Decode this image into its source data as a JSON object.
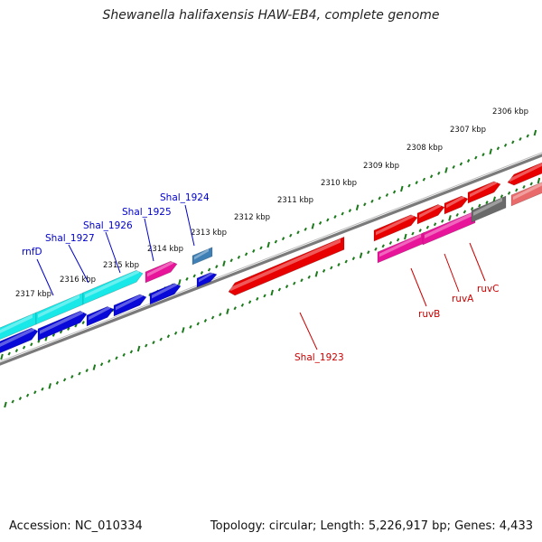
{
  "title": "Shewanella halifaxensis HAW-EB4, complete genome",
  "footer": {
    "accession": "Accession: NC_010334",
    "summary": "Topology: circular; Length: 5,226,917 bp; Genes: 4,433"
  },
  "kbp_ticks": [
    {
      "label": "2306 kbp"
    },
    {
      "label": "2307 kbp"
    },
    {
      "label": "2308 kbp"
    },
    {
      "label": "2309 kbp"
    },
    {
      "label": "2310 kbp"
    },
    {
      "label": "2311 kbp"
    },
    {
      "label": "2312 kbp"
    },
    {
      "label": "2313 kbp"
    },
    {
      "label": "2314 kbp"
    },
    {
      "label": "2315 kbp"
    },
    {
      "label": "2316 kbp"
    },
    {
      "label": "2317 kbp"
    }
  ],
  "gene_labels": [
    {
      "text": "rnfD",
      "color": "#0000cc"
    },
    {
      "text": "Shal_1927",
      "color": "#0000cc"
    },
    {
      "text": "Shal_1926",
      "color": "#0000cc"
    },
    {
      "text": "Shal_1925",
      "color": "#0000cc"
    },
    {
      "text": "Shal_1924",
      "color": "#0000cc"
    },
    {
      "text": "Shal_1923",
      "color": "#cc0000"
    },
    {
      "text": "ruvB",
      "color": "#cc0000"
    },
    {
      "text": "ruvA",
      "color": "#cc0000"
    },
    {
      "text": "ruvC",
      "color": "#cc0000"
    }
  ],
  "colors": {
    "backbone": "#7a7a7a",
    "tick_track": "#1a7a1a",
    "red_cds": "#e80000",
    "pink_cds": "#e8149a",
    "cyan_cds": "#18e8e8",
    "blue_cds": "#0808d8",
    "steelblue_cds": "#3e7fb5",
    "gray_cds": "#6a6a6a",
    "lightred_cds": "#e86a6a"
  }
}
